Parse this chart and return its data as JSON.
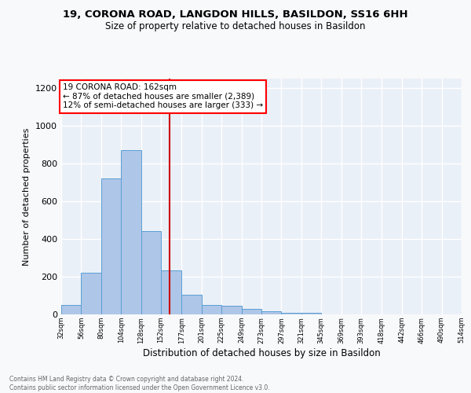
{
  "title1": "19, CORONA ROAD, LANGDON HILLS, BASILDON, SS16 6HH",
  "title2": "Size of property relative to detached houses in Basildon",
  "xlabel": "Distribution of detached houses by size in Basildon",
  "ylabel": "Number of detached properties",
  "footnote": "Contains HM Land Registry data © Crown copyright and database right 2024.\nContains public sector information licensed under the Open Government Licence v3.0.",
  "annotation_line1": "19 CORONA ROAD: 162sqm",
  "annotation_line2": "← 87% of detached houses are smaller (2,389)",
  "annotation_line3": "12% of semi-detached houses are larger (333) →",
  "property_size": 162,
  "bar_edges": [
    32,
    56,
    80,
    104,
    128,
    152,
    177,
    201,
    225,
    249,
    273,
    297,
    321,
    345,
    369,
    393,
    418,
    442,
    466,
    490,
    514
  ],
  "bar_heights": [
    50,
    220,
    720,
    870,
    440,
    235,
    105,
    48,
    47,
    30,
    18,
    10,
    10,
    0,
    0,
    0,
    0,
    0,
    0,
    0
  ],
  "bar_color": "#aec6e8",
  "bar_edgecolor": "#5a9fd4",
  "vline_color": "#cc0000",
  "vline_x": 162,
  "ylim": [
    0,
    1250
  ],
  "yticks": [
    0,
    200,
    400,
    600,
    800,
    1000,
    1200
  ],
  "background_color": "#eaf0f8",
  "grid_color": "#ffffff",
  "fig_bg": "#f8f9fa"
}
